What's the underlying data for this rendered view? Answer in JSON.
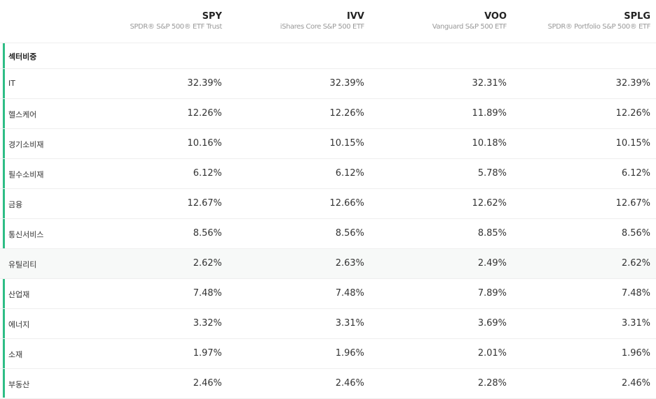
{
  "funds": [
    {
      "ticker": "SPY",
      "name": "SPDR® S&P 500® ETF Trust"
    },
    {
      "ticker": "IVV",
      "name": "iShares Core S&P 500 ETF"
    },
    {
      "ticker": "VOO",
      "name": "Vanguard S&P 500 ETF"
    },
    {
      "ticker": "SPLG",
      "name": "SPDR® Portfolio S&P 500® ETF"
    }
  ],
  "section_title": "섹터비중",
  "sectors": [
    {
      "label": "IT",
      "values": [
        "32.39%",
        "32.39%",
        "32.31%",
        "32.39%"
      ]
    },
    {
      "label": "헬스케어",
      "values": [
        "12.26%",
        "12.26%",
        "11.89%",
        "12.26%"
      ]
    },
    {
      "label": "경기소비재",
      "values": [
        "10.16%",
        "10.15%",
        "10.18%",
        "10.15%"
      ]
    },
    {
      "label": "필수소비재",
      "values": [
        "6.12%",
        "6.12%",
        "5.78%",
        "6.12%"
      ]
    },
    {
      "label": "금융",
      "values": [
        "12.67%",
        "12.66%",
        "12.62%",
        "12.67%"
      ]
    },
    {
      "label": "통신서비스",
      "values": [
        "8.56%",
        "8.56%",
        "8.85%",
        "8.56%"
      ]
    },
    {
      "label": "유틸리티",
      "values": [
        "2.62%",
        "2.63%",
        "2.49%",
        "2.62%"
      ]
    },
    {
      "label": "산업재",
      "values": [
        "7.48%",
        "7.48%",
        "7.89%",
        "7.48%"
      ]
    },
    {
      "label": "에너지",
      "values": [
        "3.32%",
        "3.31%",
        "3.69%",
        "3.31%"
      ]
    },
    {
      "label": "소재",
      "values": [
        "1.97%",
        "1.96%",
        "2.01%",
        "1.96%"
      ]
    },
    {
      "label": "부동산",
      "values": [
        "2.46%",
        "2.46%",
        "2.28%",
        "2.46%"
      ]
    }
  ],
  "highlight_row": 6,
  "colors": {
    "accent": "#2ebd85",
    "row_highlight": "#f7f9f8"
  }
}
